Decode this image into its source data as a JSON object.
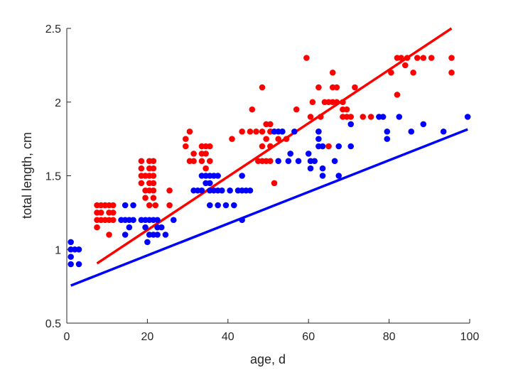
{
  "chart_data": {
    "type": "scatter",
    "xlabel": "age, d",
    "ylabel": "total length, cm",
    "xlim": [
      0,
      100
    ],
    "ylim": [
      0.5,
      2.5
    ],
    "xticks": [
      0,
      20,
      40,
      60,
      80,
      100
    ],
    "yticks": [
      0.5,
      1,
      1.5,
      2,
      2.5
    ],
    "grid": false,
    "legend": "none",
    "series": [
      {
        "color": "#ff0000",
        "points": [
          [
            7.5,
            1.3
          ],
          [
            7.5,
            1.25
          ],
          [
            7.5,
            1.2
          ],
          [
            7.5,
            1.15
          ],
          [
            8.5,
            1.3
          ],
          [
            8.5,
            1.25
          ],
          [
            8.5,
            1.2
          ],
          [
            9.5,
            1.3
          ],
          [
            9.5,
            1.2
          ],
          [
            10.5,
            1.3
          ],
          [
            10.5,
            1.25
          ],
          [
            10.5,
            1.2
          ],
          [
            10.5,
            1.1
          ],
          [
            11.5,
            1.3
          ],
          [
            11.5,
            1.25
          ],
          [
            11.5,
            1.2
          ],
          [
            18.5,
            1.6
          ],
          [
            18.5,
            1.55
          ],
          [
            18.5,
            1.5
          ],
          [
            18.5,
            1.45
          ],
          [
            19.5,
            1.5
          ],
          [
            19.5,
            1.4
          ],
          [
            19.5,
            1.35
          ],
          [
            20.5,
            1.6
          ],
          [
            20.5,
            1.55
          ],
          [
            20.5,
            1.5
          ],
          [
            20.5,
            1.45
          ],
          [
            20.5,
            1.4
          ],
          [
            20.5,
            1.3
          ],
          [
            21.5,
            1.6
          ],
          [
            21.5,
            1.55
          ],
          [
            21.5,
            1.5
          ],
          [
            21.5,
            1.45
          ],
          [
            21.5,
            1.4
          ],
          [
            21.5,
            1.35
          ],
          [
            22,
            1.3
          ],
          [
            25.5,
            1.4
          ],
          [
            25.5,
            1.3
          ],
          [
            29.5,
            1.75
          ],
          [
            29.5,
            1.7
          ],
          [
            30.5,
            1.8
          ],
          [
            30.5,
            1.6
          ],
          [
            31.5,
            1.65
          ],
          [
            31.5,
            1.6
          ],
          [
            33.5,
            1.7
          ],
          [
            33.5,
            1.65
          ],
          [
            33.5,
            1.6
          ],
          [
            34.5,
            1.7
          ],
          [
            34.5,
            1.65
          ],
          [
            34.5,
            1.55
          ],
          [
            35.5,
            1.7
          ],
          [
            35.5,
            1.6
          ],
          [
            41,
            1.75
          ],
          [
            43.5,
            1.8
          ],
          [
            45.5,
            1.8
          ],
          [
            46,
            1.95
          ],
          [
            47,
            1.8
          ],
          [
            47.5,
            1.6
          ],
          [
            48.5,
            2.1
          ],
          [
            48.5,
            1.8
          ],
          [
            48.5,
            1.7
          ],
          [
            48.5,
            1.6
          ],
          [
            49.5,
            1.85
          ],
          [
            49.5,
            1.75
          ],
          [
            49.5,
            1.6
          ],
          [
            50.5,
            1.85
          ],
          [
            50.5,
            1.8
          ],
          [
            50.5,
            1.7
          ],
          [
            50.5,
            1.6
          ],
          [
            51.5,
            1.8
          ],
          [
            51.5,
            1.45
          ],
          [
            52.5,
            1.75
          ],
          [
            53.5,
            1.8
          ],
          [
            54.5,
            1.75
          ],
          [
            57,
            1.95
          ],
          [
            59.5,
            2.3
          ],
          [
            60.5,
            1.9
          ],
          [
            61,
            2.0
          ],
          [
            62.5,
            2.1
          ],
          [
            62.5,
            1.8
          ],
          [
            63,
            1.9
          ],
          [
            64,
            2.0
          ],
          [
            65,
            2.0
          ],
          [
            65,
            1.7
          ],
          [
            66,
            2.2
          ],
          [
            66,
            2.1
          ],
          [
            66,
            2.0
          ],
          [
            67,
            2.1
          ],
          [
            67,
            2.0
          ],
          [
            68.5,
            2.0
          ],
          [
            68.5,
            1.95
          ],
          [
            68.5,
            1.9
          ],
          [
            69.5,
            1.95
          ],
          [
            69.5,
            1.9
          ],
          [
            70.5,
            1.9
          ],
          [
            71.5,
            2.1
          ],
          [
            73.5,
            1.9
          ],
          [
            75.5,
            1.9
          ],
          [
            80.5,
            2.2
          ],
          [
            82,
            2.3
          ],
          [
            82,
            2.05
          ],
          [
            83,
            2.3
          ],
          [
            84,
            2.25
          ],
          [
            84.5,
            2.3
          ],
          [
            86,
            2.2
          ],
          [
            87,
            2.3
          ],
          [
            88.5,
            2.3
          ],
          [
            90.5,
            2.3
          ],
          [
            95.5,
            2.3
          ],
          [
            95.5,
            2.2
          ]
        ],
        "fit": [
          [
            7.5,
            0.905
          ],
          [
            95.5,
            2.5
          ]
        ]
      },
      {
        "color": "#0000ff",
        "points": [
          [
            1,
            1.05
          ],
          [
            1,
            1.0
          ],
          [
            1,
            0.95
          ],
          [
            1,
            0.9
          ],
          [
            2,
            1.0
          ],
          [
            3,
            1.0
          ],
          [
            3,
            0.9
          ],
          [
            13.5,
            1.2
          ],
          [
            14.5,
            1.3
          ],
          [
            14.5,
            1.2
          ],
          [
            14.5,
            1.1
          ],
          [
            15.5,
            1.2
          ],
          [
            15.5,
            1.15
          ],
          [
            16.5,
            1.3
          ],
          [
            16.5,
            1.2
          ],
          [
            18.5,
            1.2
          ],
          [
            19.5,
            1.2
          ],
          [
            19.5,
            1.15
          ],
          [
            20,
            1.05
          ],
          [
            20.5,
            1.2
          ],
          [
            20.5,
            1.1
          ],
          [
            21.5,
            1.2
          ],
          [
            21.5,
            1.1
          ],
          [
            22.5,
            1.2
          ],
          [
            22.5,
            1.15
          ],
          [
            22.5,
            1.1
          ],
          [
            23.5,
            1.15
          ],
          [
            24.5,
            1.1
          ],
          [
            26.5,
            1.2
          ],
          [
            31.5,
            1.4
          ],
          [
            32.5,
            1.4
          ],
          [
            33.5,
            1.5
          ],
          [
            33.5,
            1.4
          ],
          [
            34.5,
            1.5
          ],
          [
            34.5,
            1.45
          ],
          [
            35.5,
            1.5
          ],
          [
            35.5,
            1.45
          ],
          [
            35.5,
            1.4
          ],
          [
            35.5,
            1.3
          ],
          [
            36.5,
            1.5
          ],
          [
            36.5,
            1.4
          ],
          [
            37.5,
            1.5
          ],
          [
            37.5,
            1.4
          ],
          [
            37.5,
            1.3
          ],
          [
            38.5,
            1.4
          ],
          [
            39.5,
            1.3
          ],
          [
            40.5,
            1.4
          ],
          [
            41.5,
            1.3
          ],
          [
            42.5,
            1.4
          ],
          [
            43.5,
            1.5
          ],
          [
            43.5,
            1.4
          ],
          [
            43.5,
            1.2
          ],
          [
            44.5,
            1.4
          ],
          [
            45.5,
            1.4
          ],
          [
            51.5,
            1.8
          ],
          [
            52.5,
            1.8
          ],
          [
            52.5,
            1.6
          ],
          [
            53.5,
            1.8
          ],
          [
            55,
            1.6
          ],
          [
            55.5,
            1.65
          ],
          [
            56.5,
            1.8
          ],
          [
            57.5,
            1.6
          ],
          [
            60,
            1.65
          ],
          [
            60.5,
            1.6
          ],
          [
            60.5,
            1.55
          ],
          [
            61.5,
            1.6
          ],
          [
            62.5,
            1.8
          ],
          [
            62.5,
            1.75
          ],
          [
            62.5,
            1.7
          ],
          [
            63.5,
            1.7
          ],
          [
            63.5,
            1.55
          ],
          [
            63.5,
            1.5
          ],
          [
            66.5,
            1.6
          ],
          [
            67.5,
            1.7
          ],
          [
            67.5,
            1.5
          ],
          [
            70.5,
            1.85
          ],
          [
            70.5,
            1.7
          ],
          [
            77.5,
            1.9
          ],
          [
            78.5,
            1.9
          ],
          [
            79.5,
            1.8
          ],
          [
            79.5,
            1.75
          ],
          [
            82.5,
            1.9
          ],
          [
            85.5,
            1.8
          ],
          [
            88.5,
            1.85
          ],
          [
            93.5,
            1.8
          ],
          [
            99.5,
            1.9
          ]
        ],
        "fit": [
          [
            1,
            0.755
          ],
          [
            99.5,
            1.815
          ]
        ]
      }
    ]
  }
}
